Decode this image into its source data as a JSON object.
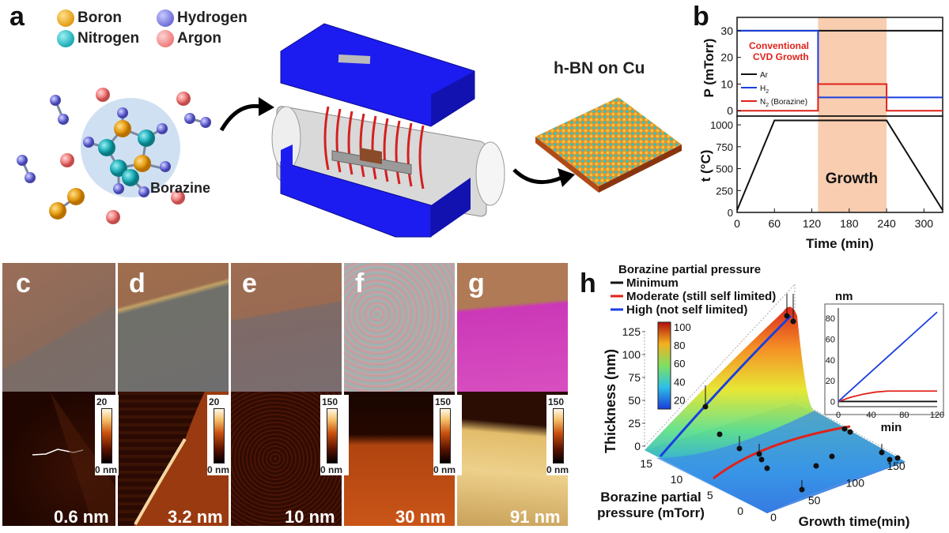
{
  "panels": {
    "a": "a",
    "b": "b",
    "c": "c",
    "d": "d",
    "e": "e",
    "f": "f",
    "g": "g",
    "h": "h"
  },
  "legend_a": {
    "boron": "Boron",
    "nitrogen": "Nitrogen",
    "hydrogen": "Hydrogen",
    "argon": "Argon",
    "molecule": "Borazine",
    "product": "h-BN on Cu",
    "colors": {
      "boron": "#e39a12",
      "nitrogen": "#19aab4",
      "hydrogen": "#6e6ed8",
      "argon": "#ef7b7b",
      "furnace": "#1c1cf0"
    }
  },
  "chart_data": [
    {
      "id": "panel-b-pressure",
      "type": "line",
      "ylabel": "P (mTorr)",
      "yticks": [
        0,
        10,
        20,
        30
      ],
      "ylim": [
        -2,
        35
      ],
      "xlim": [
        0,
        330
      ],
      "annotation": "Conventional CVD Growth",
      "shaded_region": {
        "x": [
          130,
          240
        ],
        "color": "#f8cdb0"
      },
      "series": [
        {
          "name": "Ar",
          "color": "#111111",
          "x": [
            0,
            330
          ],
          "y": [
            30,
            30
          ]
        },
        {
          "name": "H2",
          "color": "#1a3fe0",
          "x": [
            0,
            130,
            130,
            330
          ],
          "y": [
            30,
            30,
            5,
            5
          ]
        },
        {
          "name": "N2 (Borazine)",
          "color": "#e0221a",
          "x": [
            0,
            130,
            130,
            240,
            240,
            330
          ],
          "y": [
            0,
            0,
            10,
            10,
            0,
            0
          ]
        }
      ]
    },
    {
      "id": "panel-b-temperature",
      "type": "line",
      "xlabel": "Time (min)",
      "ylabel": "t (°C)",
      "xticks": [
        0,
        60,
        120,
        180,
        240,
        300
      ],
      "yticks": [
        0,
        250,
        500,
        750,
        1000
      ],
      "xlim": [
        0,
        330
      ],
      "ylim": [
        0,
        1100
      ],
      "annotation": "Growth",
      "shaded_region": {
        "x": [
          130,
          240
        ],
        "color": "#f8cdb0"
      },
      "series": [
        {
          "color": "#111111",
          "x": [
            0,
            60,
            240,
            330
          ],
          "y": [
            25,
            1050,
            1050,
            25
          ]
        }
      ]
    },
    {
      "id": "panel-h-inset",
      "type": "line",
      "ylabel": "nm",
      "xlabel": "min",
      "xticks": [
        0,
        40,
        80,
        120
      ],
      "yticks": [
        0,
        20,
        40,
        60,
        80
      ],
      "xlim": [
        0,
        120
      ],
      "ylim": [
        -5,
        90
      ],
      "series": [
        {
          "color": "#111111",
          "x": [
            0,
            120
          ],
          "y": [
            0,
            0
          ]
        },
        {
          "color": "#e0221a",
          "x": [
            0,
            15,
            30,
            45,
            60,
            120
          ],
          "y": [
            0,
            4,
            7,
            9,
            10,
            10
          ]
        },
        {
          "color": "#1a3fe0",
          "x": [
            0,
            120
          ],
          "y": [
            0,
            86
          ]
        }
      ]
    },
    {
      "id": "panel-h-surface",
      "type": "area",
      "title": "Borazine partial pressure",
      "zlabel": "Thickness (nm)",
      "ylabel": "Borazine partial pressure (mTorr)",
      "xlabel": "Growth time(min)",
      "zticks": [
        0,
        25,
        50,
        75,
        100,
        125
      ],
      "yticks": [
        0,
        5,
        10,
        15
      ],
      "xticks": [
        0,
        50,
        100,
        150
      ],
      "colorbar_ticks": [
        20,
        40,
        60,
        80,
        100
      ],
      "legend": [
        {
          "name": "Minimum",
          "color": "#111111"
        },
        {
          "name": "Moderate (still self limited)",
          "color": "#e0221a"
        },
        {
          "name": "High (not self limited)",
          "color": "#1a3fe0"
        }
      ]
    }
  ],
  "afm_tiles": [
    {
      "label": "0.6 nm",
      "cbar_max": "20",
      "cbar_min": "0 nm"
    },
    {
      "label": "3.2 nm",
      "cbar_max": "20",
      "cbar_min": "0 nm"
    },
    {
      "label": "10 nm",
      "cbar_max": "150",
      "cbar_min": "0 nm"
    },
    {
      "label": "30 nm",
      "cbar_max": "150",
      "cbar_min": "0 nm"
    },
    {
      "label": "91 nm",
      "cbar_max": "150",
      "cbar_min": "0 nm"
    }
  ],
  "b_legend": {
    "ar": "Ar",
    "h2": "H",
    "h2_sub": "2",
    "n2": "N",
    "n2_sub": "2",
    "n2_rest": " (Borazine)"
  }
}
